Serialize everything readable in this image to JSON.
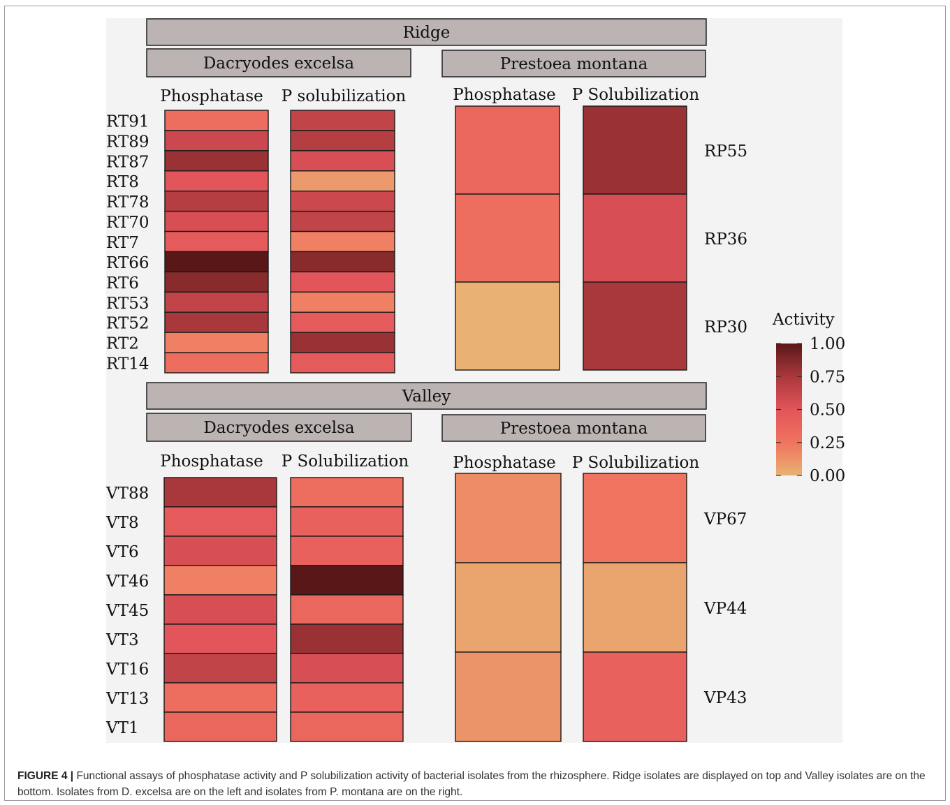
{
  "chart_data": {
    "type": "heatmap",
    "legend": {
      "title": "Activity",
      "ticks": [
        "1.00",
        "0.75",
        "0.50",
        "0.25",
        "0.00"
      ],
      "tick_values": [
        1.0,
        0.75,
        0.5,
        0.25,
        0.0
      ],
      "colors": [
        "#e9b273",
        "#f0735f",
        "#e2555a",
        "#a9383c",
        "#5a1717"
      ]
    },
    "panels": [
      {
        "site": "Ridge",
        "host": "Dacryodes excelsa",
        "columns": [
          "Phosphatase",
          "P solubilization"
        ],
        "rows": [
          "RT91",
          "RT89",
          "RT87",
          "RT8",
          "RT78",
          "RT70",
          "RT7",
          "RT66",
          "RT6",
          "RT53",
          "RT52",
          "RT2",
          "RT14"
        ],
        "values": [
          [
            0.3,
            0.65
          ],
          [
            0.6,
            0.7
          ],
          [
            0.8,
            0.55
          ],
          [
            0.5,
            0.1
          ],
          [
            0.7,
            0.6
          ],
          [
            0.55,
            0.65
          ],
          [
            0.45,
            0.2
          ],
          [
            1.0,
            0.85
          ],
          [
            0.85,
            0.5
          ],
          [
            0.65,
            0.2
          ],
          [
            0.75,
            0.45
          ],
          [
            0.2,
            0.8
          ],
          [
            0.3,
            0.45
          ]
        ]
      },
      {
        "site": "Ridge",
        "host": "Prestoea montana",
        "columns": [
          "Phosphatase",
          "P Solubilization"
        ],
        "rows": [
          "RP55",
          "RP36",
          "RP30"
        ],
        "values": [
          [
            0.35,
            0.8
          ],
          [
            0.3,
            0.55
          ],
          [
            0.0,
            0.75
          ]
        ]
      },
      {
        "site": "Valley",
        "host": "Dacryodes excelsa",
        "columns": [
          "Phosphatase",
          "P Solubilization"
        ],
        "rows": [
          "VT88",
          "VT8",
          "VT6",
          "VT46",
          "VT45",
          "VT3",
          "VT16",
          "VT13",
          "VT1"
        ],
        "values": [
          [
            0.75,
            0.3
          ],
          [
            0.45,
            0.4
          ],
          [
            0.55,
            0.4
          ],
          [
            0.2,
            1.0
          ],
          [
            0.55,
            0.35
          ],
          [
            0.5,
            0.8
          ],
          [
            0.65,
            0.55
          ],
          [
            0.3,
            0.4
          ],
          [
            0.35,
            0.35
          ]
        ]
      },
      {
        "site": "Valley",
        "host": "Prestoea montana",
        "columns": [
          "Phosphatase",
          "P Solubilization"
        ],
        "rows": [
          "VP67",
          "VP44",
          "VP43"
        ],
        "values": [
          [
            0.15,
            0.25
          ],
          [
            0.05,
            0.05
          ],
          [
            0.12,
            0.4
          ]
        ]
      }
    ]
  },
  "caption": {
    "label": "FIGURE 4 |",
    "text": "Functional assays of phosphatase activity and P solubilization activity of bacterial isolates from the rhizosphere. Ridge isolates are displayed on top and Valley isolates are on the bottom. Isolates from D. excelsa are on the left and isolates from P. montana are on the right."
  }
}
